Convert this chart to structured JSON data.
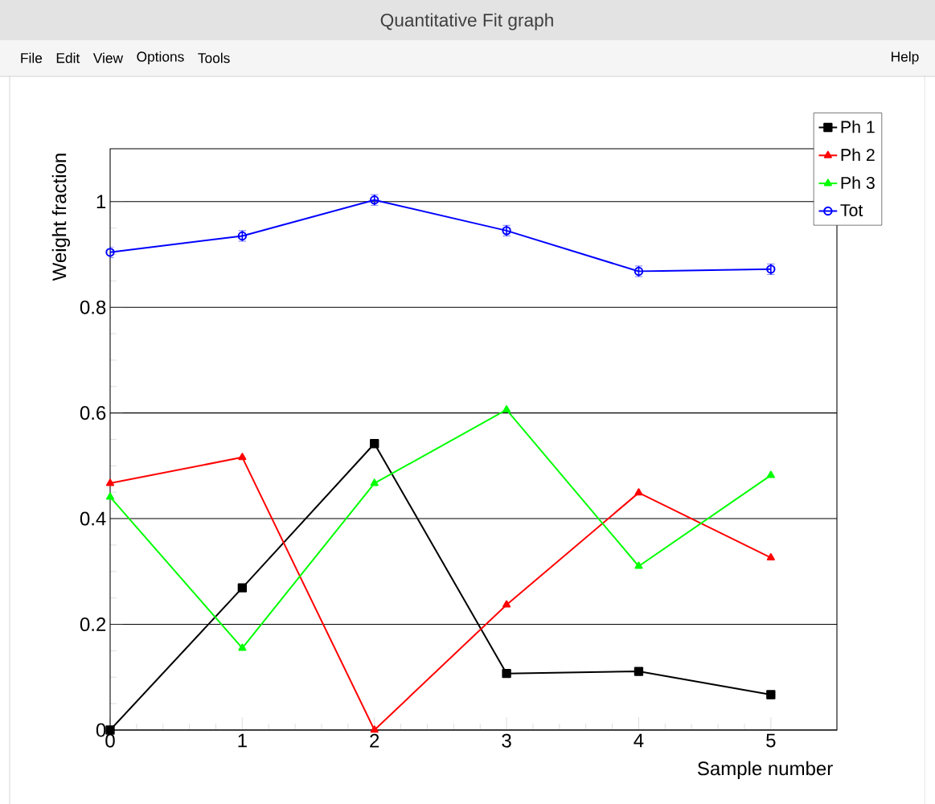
{
  "chart_data": {
    "type": "line",
    "title": "Quantitative Fit graph",
    "annotations": [
      "File",
      "Edit",
      "View",
      "Options",
      "Tools",
      "Help"
    ],
    "xlabel": "Sample number",
    "ylabel": "Weight fraction",
    "x": [
      0,
      1,
      2,
      3,
      4,
      5
    ],
    "xlim": [
      0,
      5.5
    ],
    "ylim": [
      0,
      1.1
    ],
    "xticks": [
      0,
      1,
      2,
      3,
      4,
      5
    ],
    "yticks": [
      0,
      0.2,
      0.4,
      0.6,
      0.8,
      1
    ],
    "grid": "y",
    "legend": "top right",
    "line_style": "solid",
    "series": [
      {
        "name": "Ph 1",
        "color": "#000000",
        "marker": "square",
        "values": [
          0,
          0.269,
          0.542,
          0.107,
          0.111,
          0.067
        ]
      },
      {
        "name": "Ph 2",
        "color": "#ff0000",
        "marker": "triangle",
        "values": [
          0.467,
          0.516,
          0,
          0.237,
          0.449,
          0.326
        ]
      },
      {
        "name": "Ph 3",
        "color": "#00ff00",
        "marker": "triangle",
        "values": [
          0.441,
          0.155,
          0.467,
          0.606,
          0.31,
          0.482
        ]
      },
      {
        "name": "Tot",
        "color": "#0000ff",
        "marker": "circle",
        "values": [
          0.904,
          0.935,
          1.003,
          0.945,
          0.868,
          0.872
        ],
        "errors": [
          0.01,
          0.01,
          0.01,
          0.01,
          0.01,
          0.01
        ]
      }
    ]
  }
}
